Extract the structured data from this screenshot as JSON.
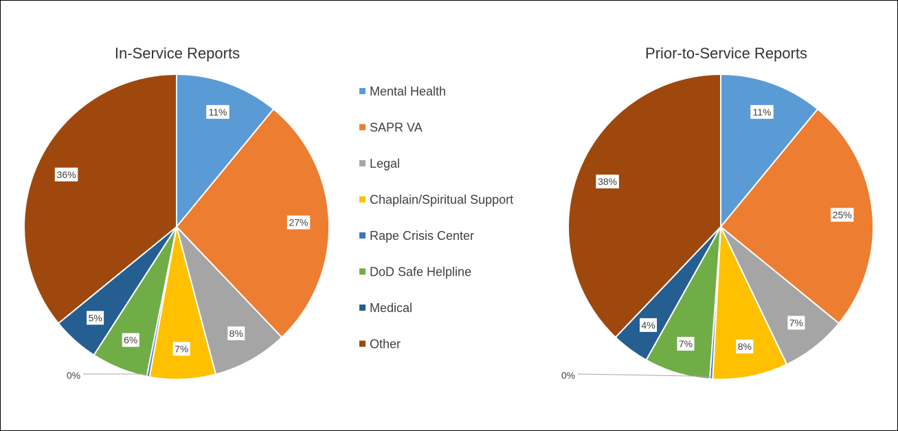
{
  "chart_data": {
    "type": "pie",
    "legend": {
      "placement": "center"
    },
    "categories": [
      "Mental Health",
      "SAPR VA",
      "Legal",
      "Chaplain/Spiritual Support",
      "Rape Crisis Center",
      "DoD Safe Helpline",
      "Medical",
      "Other"
    ],
    "colors": [
      "#5B9BD5",
      "#ED7D31",
      "#A5A5A5",
      "#FFC000",
      "#4472C4",
      "#70AD47",
      "#255E91",
      "#9E480E"
    ],
    "charts": [
      {
        "title": "In-Service Reports",
        "values": [
          11,
          27,
          8,
          7,
          0,
          6,
          5,
          36
        ],
        "labels": [
          "11%",
          "27%",
          "8%",
          "7%",
          "0%",
          "6%",
          "5%",
          "36%"
        ]
      },
      {
        "title": "Prior-to-Service Reports",
        "values": [
          11,
          25,
          7,
          8,
          0,
          7,
          4,
          38
        ],
        "labels": [
          "11%",
          "25%",
          "7%",
          "8%",
          "0%",
          "7%",
          "4%",
          "38%"
        ]
      }
    ]
  }
}
